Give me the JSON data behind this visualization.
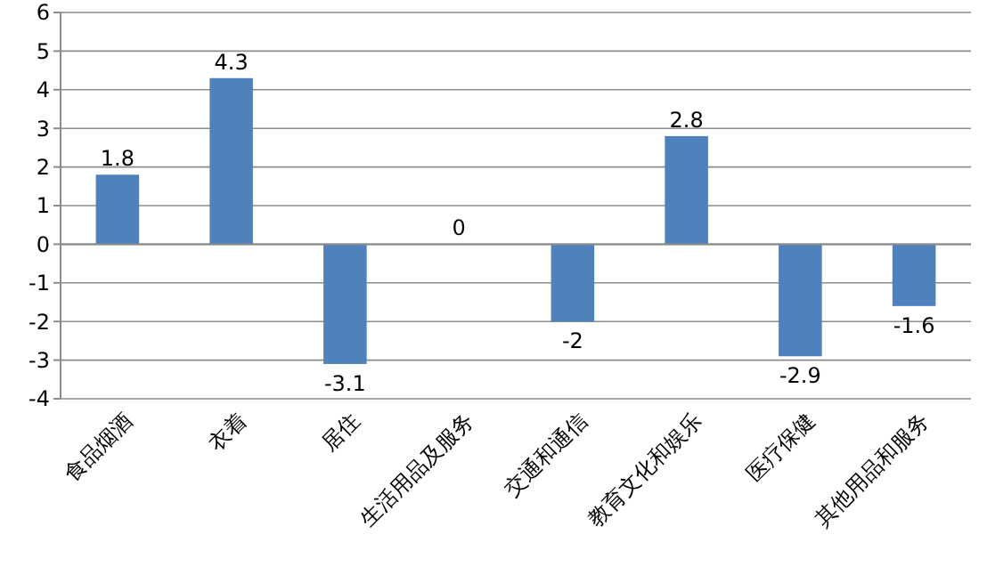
{
  "chart_data": {
    "type": "bar",
    "categories": [
      "食品烟酒",
      "衣着",
      "居住",
      "生活用品及服务",
      "交通和通信",
      "教育文化和娱乐",
      "医疗保健",
      "其他用品和服务"
    ],
    "values": [
      1.8,
      4.3,
      -3.1,
      0,
      -2,
      2.8,
      -2.9,
      -1.6
    ],
    "color": "#4f81bd",
    "ylim": [
      -4,
      6
    ],
    "yticks": [
      -4,
      -3,
      -2,
      -1,
      0,
      1,
      2,
      3,
      4,
      5,
      6
    ],
    "grid": "y",
    "data_labels": true
  }
}
